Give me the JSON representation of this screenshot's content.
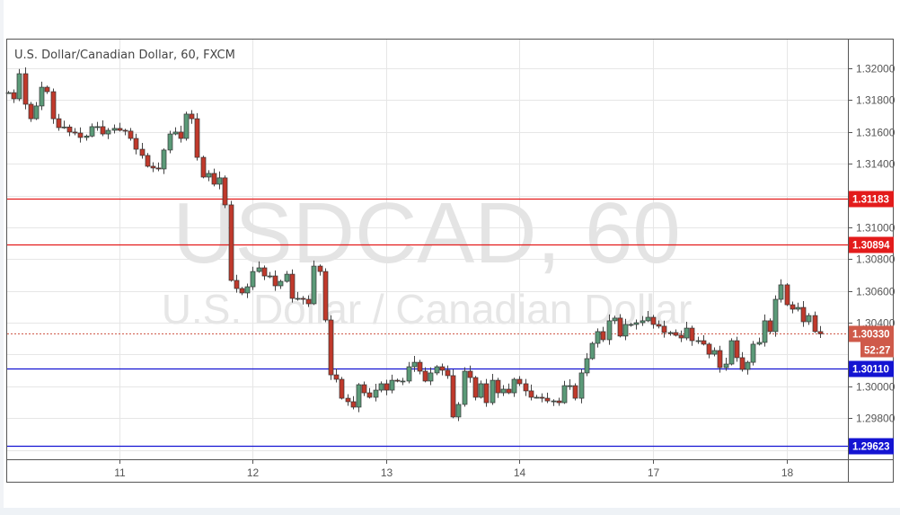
{
  "chart_data": {
    "type": "candlestick",
    "title": "U.S. Dollar/Canadian Dollar, 60, FXCM",
    "watermark_symbol": "USDCAD, 60",
    "watermark_name": "U.S. Dollar / Canadian Dollar",
    "ylim": [
      1.2945,
      1.3216
    ],
    "y_ticks": [
      "1.32000",
      "1.31800",
      "1.31600",
      "1.31400",
      "1.31000",
      "1.30800",
      "1.30600",
      "1.30400",
      "1.30000",
      "1.29800"
    ],
    "x_ticks": [
      {
        "label": "11",
        "index": 20
      },
      {
        "label": "12",
        "index": 44
      },
      {
        "label": "13",
        "index": 68
      },
      {
        "label": "14",
        "index": 92
      },
      {
        "label": "17",
        "index": 116
      },
      {
        "label": "18",
        "index": 140
      }
    ],
    "first_open": 1.31847,
    "note": "open of each candle = previous close",
    "closes": [
      1.31847,
      1.31808,
      1.31966,
      1.31774,
      1.31683,
      1.31763,
      1.31881,
      1.31853,
      1.31683,
      1.31627,
      1.31631,
      1.31599,
      1.31593,
      1.31565,
      1.31574,
      1.31633,
      1.31633,
      1.31587,
      1.3161,
      1.31622,
      1.3161,
      1.31605,
      1.31559,
      1.31491,
      1.31452,
      1.31384,
      1.31373,
      1.31367,
      1.31486,
      1.31587,
      1.31599,
      1.31559,
      1.31712,
      1.31683,
      1.3144,
      1.31316,
      1.31339,
      1.31271,
      1.31311,
      1.31141,
      1.30666,
      1.30615,
      1.30587,
      1.30626,
      1.30722,
      1.30745,
      1.30694,
      1.30694,
      1.30632,
      1.3066,
      1.30705,
      1.30553,
      1.30553,
      1.30547,
      1.30519,
      1.30756,
      1.30722,
      1.30417,
      1.30072,
      1.30044,
      1.29925,
      1.29903,
      1.29869,
      1.3001,
      1.29959,
      1.29931,
      1.29976,
      1.30016,
      1.29976,
      1.30038,
      1.30033,
      1.30033,
      1.30123,
      1.30151,
      1.30095,
      1.30033,
      1.30084,
      1.30123,
      1.30101,
      1.30067,
      1.29807,
      1.29886,
      1.30095,
      1.30055,
      1.29931,
      1.30016,
      1.29897,
      1.30038,
      1.29959,
      1.29982,
      1.29959,
      1.30044,
      1.30016,
      1.29971,
      1.29931,
      1.29931,
      1.29925,
      1.29908,
      1.29908,
      1.29897,
      1.30004,
      1.30004,
      1.29925,
      1.30084,
      1.30174,
      1.3027,
      1.30344,
      1.30293,
      1.30412,
      1.30429,
      1.30316,
      1.30389,
      1.30389,
      1.304,
      1.30412,
      1.30434,
      1.30389,
      1.30378,
      1.30338,
      1.30338,
      1.30321,
      1.30304,
      1.30366,
      1.30287,
      1.30287,
      1.30265,
      1.30202,
      1.30225,
      1.30118,
      1.3014,
      1.30287,
      1.3018,
      1.30106,
      1.30151,
      1.30265,
      1.30276,
      1.30412,
      1.30344,
      1.30547,
      1.30638,
      1.30513,
      1.30485,
      1.30496,
      1.30406,
      1.30445,
      1.30344,
      1.3033
    ],
    "levels": [
      {
        "label": "1.31183",
        "value": 1.31183,
        "color": "#e31b1b"
      },
      {
        "label": "1.30894",
        "value": 1.30894,
        "color": "#e31b1b"
      },
      {
        "label": "1.30110",
        "value": 1.3011,
        "color": "#1414d2"
      },
      {
        "label": "1.29623",
        "value": 1.29623,
        "color": "#1414d2"
      }
    ],
    "current_price": {
      "label": "1.30330",
      "value": 1.3033,
      "color": "#cf5a4a"
    },
    "countdown": "52:27",
    "colors": {
      "up": "#5b9a78",
      "down": "#c0392b",
      "outline": "#333333"
    }
  }
}
